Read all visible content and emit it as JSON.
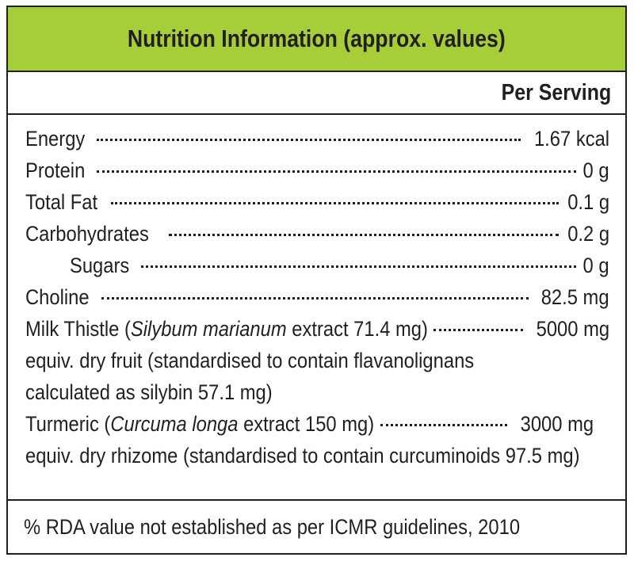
{
  "header": {
    "title": "Nutrition Information (approx. values)"
  },
  "column_header": "Per Serving",
  "rows": [
    {
      "label": "Energy ",
      "value": " 1.67 kcal"
    },
    {
      "label": "Protein",
      "value": " 0 g"
    },
    {
      "label": "Total Fat",
      "value": " 0.1 g"
    },
    {
      "label": "Carbohydrates ",
      "value": " 0.2 g"
    },
    {
      "label": "Sugars",
      "value": " 0 g"
    },
    {
      "label": "Choline ",
      "value": " 82.5 mg"
    }
  ],
  "milk_thistle": {
    "label_pre": "Milk Thistle (",
    "label_italic": "Silybum marianum",
    "label_post": " extract 71.4 mg)",
    "value": "5000 mg",
    "line2": "equiv. dry fruit (standardised to contain flavanolignans",
    "line3": "calculated as silybin 57.1 mg)"
  },
  "turmeric": {
    "label_pre": "Turmeric (",
    "label_italic": "Curcuma longa",
    "label_post": " extract 150 mg)",
    "value": "3000 mg",
    "line2": "equiv. dry rhizome (standardised to contain curcuminoids 97.5 mg)"
  },
  "footer": {
    "note": "% RDA value not established as per ICMR guidelines, 2010"
  }
}
